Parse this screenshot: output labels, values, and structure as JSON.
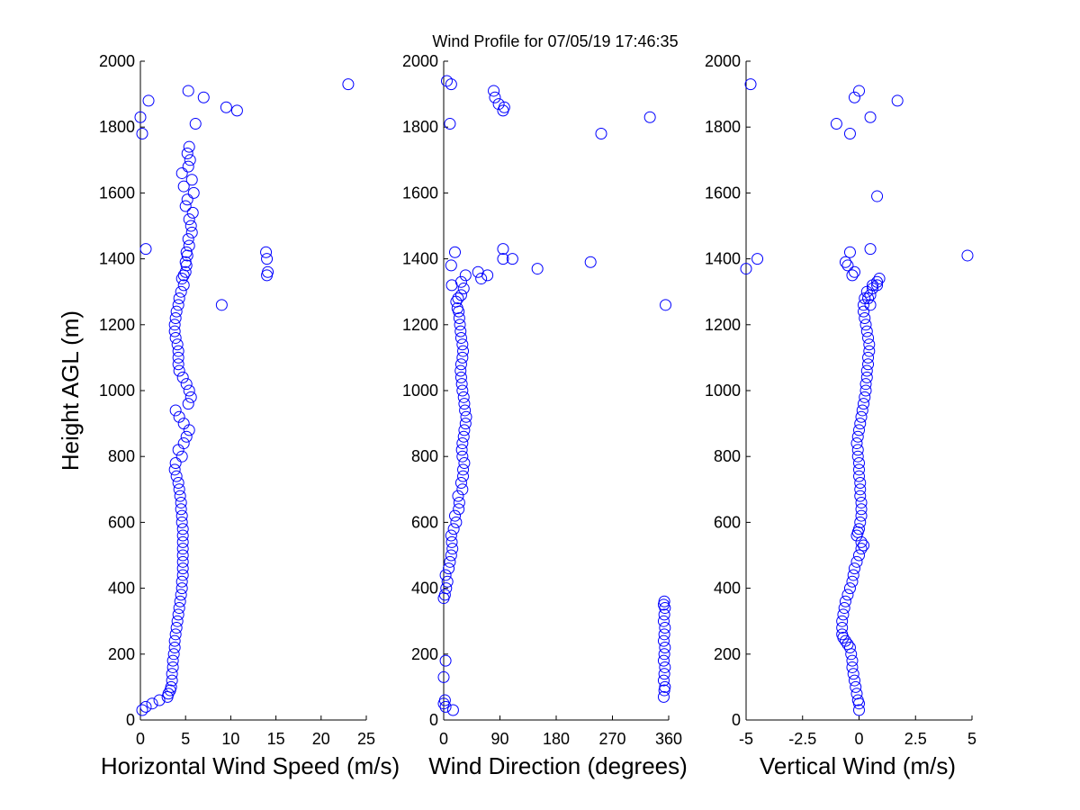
{
  "figure": {
    "title": "Wind Profile for  07/05/19 17:46:35"
  },
  "chart_data": [
    {
      "type": "scatter",
      "xlabel": "Horizontal Wind Speed (m/s)",
      "ylabel": "Height AGL (m)",
      "xlim": [
        0,
        25
      ],
      "ylim": [
        0,
        2000
      ],
      "xticks": [
        "0",
        "5",
        "10",
        "15",
        "20",
        "25"
      ],
      "yticks": [
        "0",
        "200",
        "400",
        "600",
        "800",
        "1000",
        "1200",
        "1400",
        "1600",
        "1800",
        "2000"
      ],
      "marker_color": "#0000ff",
      "series": [
        {
          "x": [
            0.2,
            0.6,
            1.3,
            2.1,
            3.0,
            3.1,
            3.3,
            3.4,
            3.5,
            3.5,
            3.6,
            3.6,
            3.7,
            3.8,
            3.8,
            3.9,
            4.0,
            4.1,
            4.2,
            4.3,
            4.4,
            4.5,
            4.6,
            4.6,
            4.7,
            4.7,
            4.7,
            4.7,
            4.7,
            4.7,
            4.7,
            4.7,
            4.6,
            4.6,
            4.5,
            4.5,
            4.4,
            4.3,
            4.2,
            4.0,
            3.8,
            3.9,
            4.6,
            4.2,
            4.8,
            5.1,
            5.4,
            4.8,
            4.3,
            3.9,
            5.3,
            5.6,
            5.4,
            5.1,
            4.7,
            4.3,
            4.2,
            4.2,
            4.2,
            4.1,
            3.9,
            3.8,
            3.8,
            3.9,
            4.0,
            4.2,
            4.3,
            4.5,
            4.8,
            4.6,
            4.8,
            5.0,
            5.1,
            5.0,
            5.2,
            5.1,
            5.4,
            5.3,
            5.7,
            5.6,
            5.4,
            5.8,
            5.0,
            5.2,
            5.9,
            4.8,
            5.7,
            4.6,
            5.3,
            5.5,
            5.2,
            5.4,
            14.0,
            14.1,
            14.0,
            13.9,
            9.0,
            0.6,
            0.2,
            0.0,
            6.1,
            9.5,
            10.7,
            0.9,
            7.0,
            5.3,
            23.0
          ],
          "y": [
            30,
            40,
            50,
            60,
            70,
            80,
            90,
            100,
            120,
            140,
            160,
            180,
            200,
            220,
            240,
            260,
            280,
            300,
            320,
            340,
            360,
            380,
            400,
            420,
            440,
            460,
            480,
            500,
            520,
            540,
            560,
            580,
            600,
            620,
            640,
            660,
            680,
            700,
            720,
            740,
            760,
            780,
            800,
            820,
            840,
            860,
            880,
            900,
            920,
            940,
            960,
            980,
            1000,
            1020,
            1040,
            1060,
            1080,
            1100,
            1120,
            1140,
            1160,
            1180,
            1200,
            1220,
            1240,
            1260,
            1280,
            1300,
            1320,
            1340,
            1350,
            1360,
            1380,
            1390,
            1410,
            1420,
            1440,
            1460,
            1480,
            1500,
            1520,
            1540,
            1560,
            1580,
            1600,
            1620,
            1640,
            1660,
            1680,
            1700,
            1720,
            1740,
            1350,
            1360,
            1400,
            1420,
            1260,
            1430,
            1780,
            1830,
            1810,
            1860,
            1850,
            1880,
            1890,
            1910,
            1930
          ]
        }
      ]
    },
    {
      "type": "scatter",
      "xlabel": "Wind Direction (degrees)",
      "ylabel": "",
      "xlim": [
        0,
        360
      ],
      "ylim": [
        0,
        2000
      ],
      "xticks": [
        "0",
        "90",
        "180",
        "270",
        "360"
      ],
      "yticks": [
        "0",
        "200",
        "400",
        "600",
        "800",
        "1000",
        "1200",
        "1400",
        "1600",
        "1800",
        "2000"
      ],
      "marker_color": "#0000ff",
      "series": [
        {
          "x": [
            15,
            3,
            0,
            2,
            0,
            3,
            352,
            353,
            354,
            352,
            353,
            354,
            352,
            353,
            354,
            352,
            353,
            354,
            352,
            353,
            354,
            352,
            353,
            0,
            2,
            4,
            6,
            3,
            8,
            10,
            12,
            14,
            13,
            12,
            16,
            20,
            18,
            24,
            25,
            23,
            30,
            28,
            31,
            31,
            33,
            30,
            29,
            30,
            32,
            33,
            35,
            36,
            34,
            33,
            32,
            30,
            29,
            28,
            27,
            28,
            30,
            31,
            30,
            28,
            27,
            26,
            25,
            24,
            22,
            20,
            23,
            28,
            32,
            13,
            12,
            18,
            28,
            35,
            60,
            55,
            70,
            95,
            110,
            150,
            235,
            95,
            10,
            80,
            82,
            88,
            95,
            97,
            12,
            252,
            330,
            355,
            5
          ],
          "y": [
            30,
            40,
            50,
            60,
            130,
            180,
            70,
            90,
            100,
            120,
            140,
            160,
            180,
            200,
            220,
            240,
            260,
            280,
            300,
            320,
            340,
            350,
            360,
            370,
            380,
            400,
            420,
            440,
            460,
            480,
            500,
            520,
            540,
            560,
            580,
            600,
            620,
            640,
            660,
            680,
            700,
            720,
            740,
            760,
            780,
            800,
            820,
            840,
            860,
            880,
            900,
            920,
            940,
            960,
            980,
            1000,
            1020,
            1040,
            1060,
            1080,
            1100,
            1120,
            1140,
            1160,
            1180,
            1200,
            1220,
            1240,
            1250,
            1270,
            1280,
            1290,
            1310,
            1320,
            1380,
            1420,
            1330,
            1350,
            1340,
            1360,
            1350,
            1430,
            1400,
            1370,
            1390,
            1400,
            1810,
            1910,
            1890,
            1870,
            1850,
            1860,
            1930,
            1780,
            1830,
            1260,
            1940
          ]
        }
      ]
    },
    {
      "type": "scatter",
      "xlabel": "Vertical Wind (m/s)",
      "ylabel": "",
      "xlim": [
        -5,
        5
      ],
      "ylim": [
        0,
        2000
      ],
      "xticks": [
        "-5",
        "-2.5",
        "0",
        "2.5",
        "5"
      ],
      "yticks": [
        "0",
        "200",
        "400",
        "600",
        "800",
        "1000",
        "1200",
        "1400",
        "1600",
        "1800",
        "2000"
      ],
      "marker_color": "#0000ff",
      "series": [
        {
          "x": [
            0.0,
            0.0,
            -0.05,
            -0.1,
            -0.15,
            -0.2,
            -0.25,
            -0.3,
            -0.3,
            -0.35,
            -0.4,
            -0.5,
            -0.6,
            -0.7,
            -0.75,
            -0.75,
            -0.75,
            -0.7,
            -0.65,
            -0.6,
            -0.5,
            -0.4,
            -0.3,
            -0.25,
            -0.2,
            -0.1,
            0.0,
            0.1,
            0.2,
            0.1,
            -0.1,
            -0.05,
            0.0,
            0.05,
            0.1,
            0.1,
            0.1,
            0.05,
            0.05,
            0.05,
            0.0,
            0.0,
            0.0,
            -0.05,
            -0.05,
            -0.1,
            -0.05,
            0.0,
            0.05,
            0.1,
            0.15,
            0.2,
            0.25,
            0.3,
            0.3,
            0.35,
            0.35,
            0.4,
            0.4,
            0.45,
            0.45,
            0.4,
            0.35,
            0.3,
            0.25,
            0.2,
            0.2,
            0.25,
            0.5,
            0.35,
            0.6,
            0.8,
            0.9,
            0.6,
            0.8,
            0.5,
            0.4,
            -0.3,
            -0.5,
            -0.6,
            -0.2,
            -4.5,
            -5.0,
            -0.4,
            0.5,
            4.8,
            0.8,
            -0.4,
            0.5,
            -1.0,
            1.7,
            -0.2,
            0.0,
            -4.8
          ],
          "y": [
            30,
            50,
            60,
            80,
            100,
            120,
            140,
            160,
            180,
            200,
            220,
            230,
            240,
            250,
            260,
            280,
            300,
            320,
            340,
            360,
            380,
            400,
            420,
            440,
            460,
            480,
            500,
            520,
            530,
            540,
            560,
            570,
            580,
            600,
            620,
            640,
            660,
            680,
            700,
            720,
            740,
            760,
            780,
            800,
            820,
            840,
            860,
            880,
            900,
            920,
            940,
            960,
            980,
            1000,
            1020,
            1040,
            1060,
            1080,
            1100,
            1120,
            1140,
            1160,
            1180,
            1200,
            1220,
            1240,
            1260,
            1280,
            1260,
            1300,
            1320,
            1330,
            1340,
            1310,
            1320,
            1290,
            1280,
            1350,
            1380,
            1390,
            1360,
            1400,
            1370,
            1420,
            1430,
            1410,
            1590,
            1780,
            1830,
            1810,
            1880,
            1890,
            1910,
            1930
          ]
        }
      ]
    }
  ]
}
